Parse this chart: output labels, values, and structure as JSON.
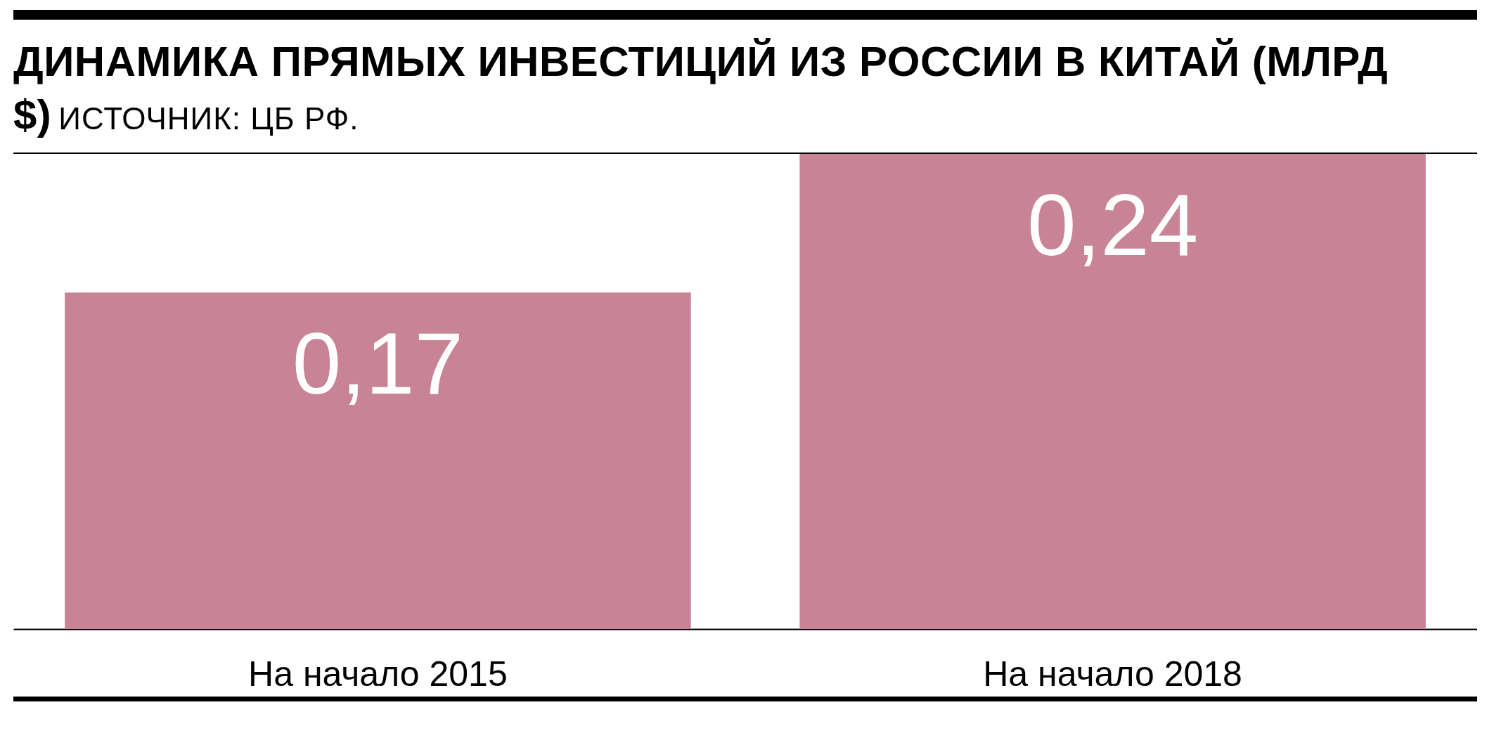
{
  "chart_data": {
    "type": "bar",
    "title": "ДИНАМИКА ПРЯМЫХ ИНВЕСТИЦИЙ ИЗ РОССИИ В КИТАЙ (МЛРД $)",
    "annotations": [
      "ИСТОЧНИК: ЦБ РФ."
    ],
    "categories": [
      "На начало 2015",
      "На начало 2018"
    ],
    "values": [
      0.17,
      0.24
    ],
    "value_labels": [
      "0,17",
      "0,24"
    ],
    "color": "#c88496"
  }
}
